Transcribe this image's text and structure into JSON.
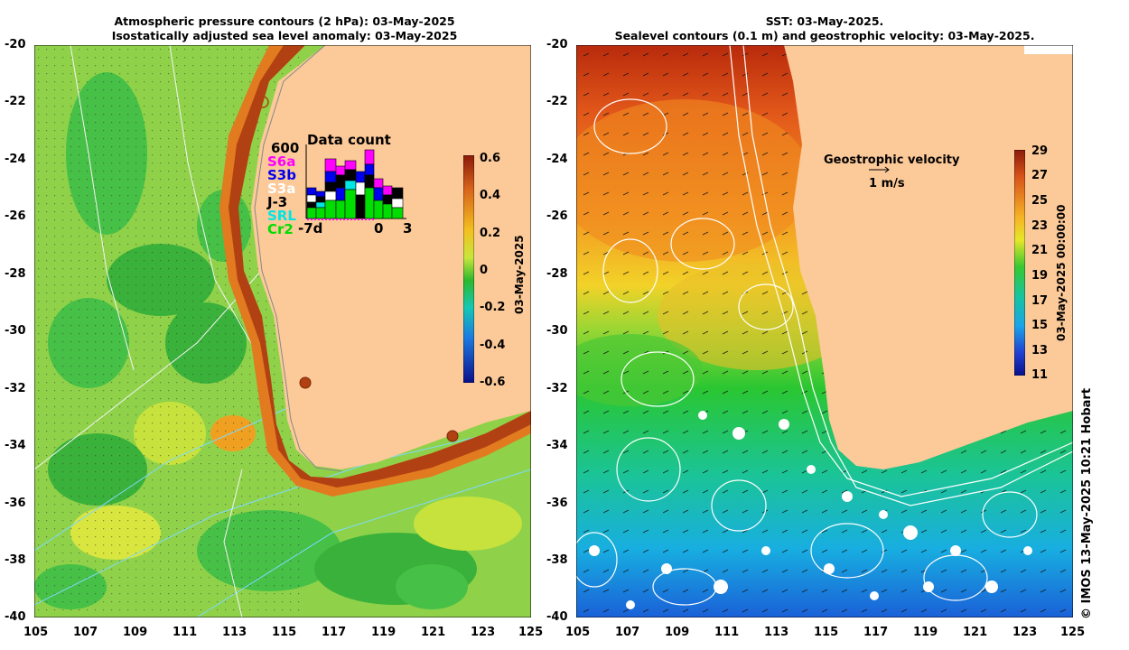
{
  "left_panel": {
    "title_line1": "Atmospheric pressure contours (2 hPa): 03-May-2025",
    "title_line2": "Isostatically adjusted sea level anomaly: 03-May-2025",
    "colorbar": {
      "ticks": [
        "0.6",
        "0.4",
        "0.2",
        "0",
        "-0.2",
        "-0.4",
        "-0.6"
      ],
      "label": "03-May-2025"
    },
    "data_count": {
      "title": "Data count",
      "max_label": "600",
      "satellites": [
        {
          "name": "S6a",
          "color": "#ff00ff"
        },
        {
          "name": "S3b",
          "color": "#0000ee"
        },
        {
          "name": "S3a",
          "color": "#ffffff"
        },
        {
          "name": "J-3",
          "color": "#000000"
        },
        {
          "name": "SRL",
          "color": "#00e5e5"
        },
        {
          "name": "Cr2",
          "color": "#00dd00"
        }
      ],
      "x_labels": [
        "-7d",
        "0",
        "3"
      ]
    }
  },
  "right_panel": {
    "title_line1": "SST: 03-May-2025.",
    "title_line2": "Sealevel contours (0.1 m) and geostrophic velocity: 03-May-2025.",
    "legend_title": "Geostrophic velocity",
    "legend_scale": "1 m/s",
    "colorbar": {
      "ticks": [
        "29",
        "27",
        "25",
        "23",
        "21",
        "19",
        "17",
        "15",
        "13",
        "11"
      ],
      "label": "03-May-2025 00:00:00"
    }
  },
  "axes": {
    "y_ticks": [
      "-20",
      "-22",
      "-24",
      "-26",
      "-28",
      "-30",
      "-32",
      "-34",
      "-36",
      "-38",
      "-40"
    ],
    "x_ticks": [
      "105",
      "107",
      "109",
      "111",
      "113",
      "115",
      "117",
      "119",
      "121",
      "123",
      "125"
    ]
  },
  "credit": "© IMOS 13-May-2025 10:21 Hobart"
}
